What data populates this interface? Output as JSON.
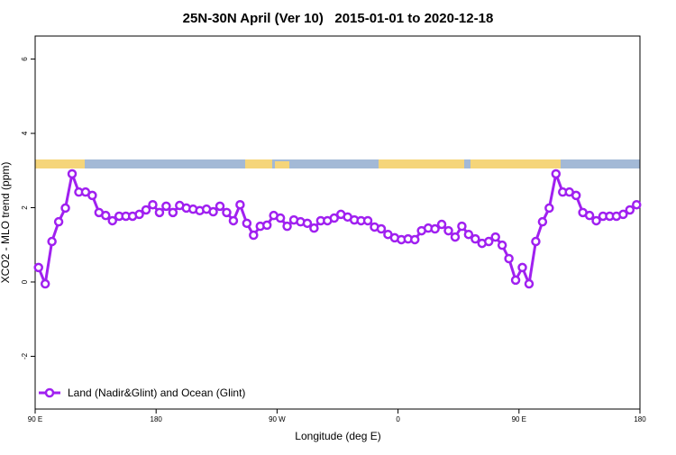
{
  "chart_data": {
    "type": "line",
    "title": "25N-30N April (Ver 10)   2015-01-01 to 2020-12-18",
    "xlabel": "Longitude (deg E)",
    "ylabel": "XCO2 - MLO trend (ppm)",
    "xlim": [
      90,
      540
    ],
    "ylim": [
      -3.42,
      6.62
    ],
    "xticks": [
      {
        "value": 90,
        "label": "90 E"
      },
      {
        "value": 180,
        "label": "180"
      },
      {
        "value": 270,
        "label": "90 W"
      },
      {
        "value": 360,
        "label": "0"
      },
      {
        "value": 450,
        "label": "90 E"
      },
      {
        "value": 540,
        "label": "180"
      }
    ],
    "yticks": [
      -2,
      0,
      2,
      4,
      6
    ],
    "legend": "bottomleft",
    "x": [
      92.5,
      97.5,
      102.5,
      107.5,
      112.5,
      117.5,
      122.5,
      127.5,
      132.5,
      137.5,
      142.5,
      147.5,
      152.5,
      157.5,
      162.5,
      167.5,
      172.5,
      177.5,
      182.5,
      187.5,
      192.5,
      197.5,
      202.5,
      207.5,
      212.5,
      217.5,
      222.5,
      227.5,
      232.5,
      237.5,
      242.5,
      247.5,
      252.5,
      257.5,
      262.5,
      267.5,
      272.5,
      277.5,
      282.5,
      287.5,
      292.5,
      297.5,
      302.5,
      307.5,
      312.5,
      317.5,
      322.5,
      327.5,
      332.5,
      337.5,
      342.5,
      347.5,
      352.5,
      357.5,
      362.5,
      367.5,
      372.5,
      377.5,
      382.5,
      387.5,
      392.5,
      397.5,
      402.5,
      407.5,
      412.5,
      417.5,
      422.5,
      427.5,
      432.5,
      437.5,
      442.5,
      447.5,
      452.5,
      457.5,
      462.5,
      467.5,
      472.5,
      477.5,
      482.5,
      487.5,
      492.5,
      497.5,
      502.5,
      507.5,
      512.5,
      517.5,
      522.5,
      527.5,
      532.5,
      537.5
    ],
    "series": [
      {
        "name": "Land (Nadir&Glint) and Ocean (Glint)",
        "color": "#a020f0",
        "values": [
          0.39,
          -0.05,
          1.09,
          1.62,
          1.99,
          2.91,
          2.42,
          2.42,
          2.33,
          1.87,
          1.79,
          1.65,
          1.77,
          1.77,
          1.77,
          1.82,
          1.94,
          2.08,
          1.87,
          2.04,
          1.87,
          2.06,
          1.99,
          1.96,
          1.92,
          1.96,
          1.89,
          2.04,
          1.87,
          1.65,
          2.08,
          1.58,
          1.26,
          1.5,
          1.53,
          1.79,
          1.72,
          1.5,
          1.67,
          1.62,
          1.58,
          1.45,
          1.65,
          1.65,
          1.72,
          1.82,
          1.75,
          1.67,
          1.65,
          1.65,
          1.48,
          1.43,
          1.28,
          1.19,
          1.14,
          1.16,
          1.14,
          1.38,
          1.45,
          1.43,
          1.55,
          1.38,
          1.21,
          1.5,
          1.28,
          1.16,
          1.04,
          1.09,
          1.21,
          0.99,
          0.63,
          0.05,
          0.39,
          -0.05,
          1.09,
          1.62,
          1.99,
          2.91,
          2.42,
          2.42,
          2.33,
          1.87,
          1.79,
          1.65,
          1.77,
          1.77,
          1.77,
          1.82,
          1.94,
          2.08
        ]
      }
    ]
  }
}
